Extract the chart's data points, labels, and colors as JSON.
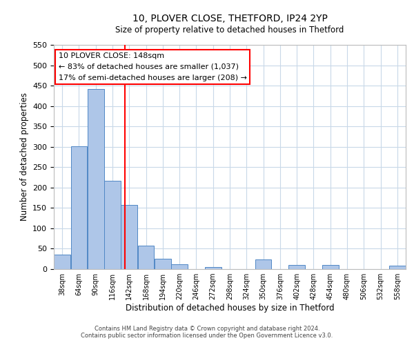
{
  "title1": "10, PLOVER CLOSE, THETFORD, IP24 2YP",
  "title2": "Size of property relative to detached houses in Thetford",
  "xlabel": "Distribution of detached houses by size in Thetford",
  "ylabel": "Number of detached properties",
  "bin_labels": [
    "38sqm",
    "64sqm",
    "90sqm",
    "116sqm",
    "142sqm",
    "168sqm",
    "194sqm",
    "220sqm",
    "246sqm",
    "272sqm",
    "298sqm",
    "324sqm",
    "350sqm",
    "376sqm",
    "402sqm",
    "428sqm",
    "454sqm",
    "480sqm",
    "506sqm",
    "532sqm",
    "558sqm"
  ],
  "bin_edges": [
    38,
    64,
    90,
    116,
    142,
    168,
    194,
    220,
    246,
    272,
    298,
    324,
    350,
    376,
    402,
    428,
    454,
    480,
    506,
    532,
    558,
    584
  ],
  "bar_values": [
    36,
    302,
    441,
    216,
    158,
    57,
    26,
    12,
    0,
    5,
    0,
    0,
    24,
    0,
    10,
    0,
    10,
    0,
    0,
    0,
    9
  ],
  "bar_color": "#aec6e8",
  "bar_edge_color": "#4f87c5",
  "property_size": 148,
  "vline_color": "red",
  "annotation_title": "10 PLOVER CLOSE: 148sqm",
  "annotation_line1": "← 83% of detached houses are smaller (1,037)",
  "annotation_line2": "17% of semi-detached houses are larger (208) →",
  "ylim": [
    0,
    550
  ],
  "yticks": [
    0,
    50,
    100,
    150,
    200,
    250,
    300,
    350,
    400,
    450,
    500,
    550
  ],
  "footer1": "Contains HM Land Registry data © Crown copyright and database right 2024.",
  "footer2": "Contains public sector information licensed under the Open Government Licence v3.0.",
  "bg_color": "#ffffff",
  "grid_color": "#c8d8e8"
}
